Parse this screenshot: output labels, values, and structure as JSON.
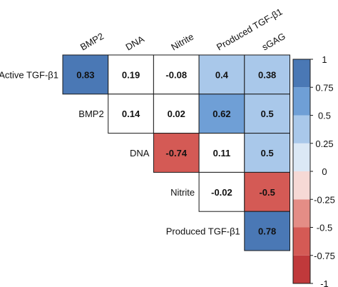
{
  "chart_data": {
    "type": "heatmap",
    "row_labels": [
      "Active TGF-β1",
      "BMP2",
      "DNA",
      "Nitrite",
      "Produced TGF-β1"
    ],
    "col_labels": [
      "BMP2",
      "DNA",
      "Nitrite",
      "Produced TGF-β1",
      "sGAG"
    ],
    "cells": [
      {
        "row": 0,
        "col": 0,
        "value": 0.83,
        "label": "0.83"
      },
      {
        "row": 0,
        "col": 1,
        "value": 0.19,
        "label": "0.19"
      },
      {
        "row": 0,
        "col": 2,
        "value": -0.08,
        "label": "-0.08"
      },
      {
        "row": 0,
        "col": 3,
        "value": 0.4,
        "label": "0.4"
      },
      {
        "row": 0,
        "col": 4,
        "value": 0.38,
        "label": "0.38"
      },
      {
        "row": 1,
        "col": 1,
        "value": 0.14,
        "label": "0.14"
      },
      {
        "row": 1,
        "col": 2,
        "value": 0.02,
        "label": "0.02"
      },
      {
        "row": 1,
        "col": 3,
        "value": 0.62,
        "label": "0.62"
      },
      {
        "row": 1,
        "col": 4,
        "value": 0.5,
        "label": "0.5"
      },
      {
        "row": 2,
        "col": 2,
        "value": -0.74,
        "label": "-0.74"
      },
      {
        "row": 2,
        "col": 3,
        "value": 0.11,
        "label": "0.11"
      },
      {
        "row": 2,
        "col": 4,
        "value": 0.5,
        "label": "0.5"
      },
      {
        "row": 3,
        "col": 3,
        "value": -0.02,
        "label": "-0.02"
      },
      {
        "row": 3,
        "col": 4,
        "value": -0.5,
        "label": "-0.5"
      },
      {
        "row": 4,
        "col": 4,
        "value": 0.78,
        "label": "0.78"
      }
    ],
    "scale": {
      "range": [
        -1,
        1
      ],
      "ticks": [
        "-1",
        "-0.75",
        "-0.5",
        "-0.25",
        "0",
        "0.25",
        "0.5",
        "0.75",
        "1"
      ],
      "tick_values": [
        -1,
        -0.75,
        -0.5,
        -0.25,
        0,
        0.25,
        0.5,
        0.75,
        1
      ],
      "bins": [
        {
          "min": -1.0,
          "max": -0.75,
          "color": "#c0393b"
        },
        {
          "min": -0.75,
          "max": -0.5,
          "color": "#d45a55"
        },
        {
          "min": -0.5,
          "max": -0.25,
          "color": "#e48d86"
        },
        {
          "min": -0.25,
          "max": 0.0,
          "color": "#f6d9d5"
        },
        {
          "min": 0.0,
          "max": 0.25,
          "color": "#dbe8f5"
        },
        {
          "min": 0.25,
          "max": 0.5,
          "color": "#a9c8ea"
        },
        {
          "min": 0.5,
          "max": 0.75,
          "color": "#6f9fd6"
        },
        {
          "min": 0.75,
          "max": 1.0,
          "color": "#4a78b5"
        }
      ]
    },
    "cell_colors": {
      "0.83": "#4a78b5",
      "0.19": "#ffffff",
      "-0.08": "#ffffff",
      "0.4": "#a9c8ea",
      "0.38": "#a9c8ea",
      "0.14": "#ffffff",
      "0.02": "#ffffff",
      "0.62": "#6f9fd6",
      "0.5": "#a9c8ea",
      "-0.74": "#d45a55",
      "0.11": "#ffffff",
      "-0.02": "#ffffff",
      "-0.5": "#d45a55",
      "0.78": "#4a78b5"
    },
    "legend_position": "right",
    "grid": false
  }
}
